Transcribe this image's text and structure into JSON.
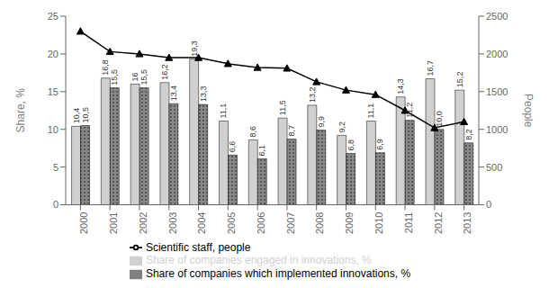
{
  "chart_data": {
    "type": "bar",
    "categories": [
      "2000",
      "2001",
      "2002",
      "2003",
      "2004",
      "2005",
      "2006",
      "2007",
      "2008",
      "2009",
      "2010",
      "2011",
      "2012",
      "2013"
    ],
    "series": [
      {
        "name": "Share of companies engaged in innovations, %",
        "type": "bar",
        "color": "#d0d0d0",
        "values": [
          10.4,
          16.8,
          16.0,
          16.2,
          19.3,
          11.1,
          8.6,
          11.5,
          13.2,
          9.2,
          11.1,
          14.3,
          16.7,
          15.2
        ],
        "value_labels": [
          "10,4",
          "16,8",
          "16",
          "16,2",
          "19,3",
          "11,1",
          "8,6",
          "11,5",
          "13,2",
          "9,2",
          "11,1",
          "14,3",
          "16,7",
          "15,2"
        ]
      },
      {
        "name": "Share of companies which implemented innovations, %",
        "type": "bar",
        "color": "#888888",
        "values": [
          10.5,
          15.5,
          15.5,
          13.4,
          13.3,
          6.6,
          6.1,
          8.7,
          9.9,
          6.8,
          6.9,
          11.2,
          10.0,
          8.2
        ],
        "value_labels": [
          "10,5",
          "15,5",
          "15,5",
          "13,4",
          "13,3",
          "6,6",
          "6,1",
          "8,7",
          "9,9",
          "6,8",
          "6,9",
          "11,2",
          "10,0",
          "8,2"
        ]
      },
      {
        "name": "Scientific staff, people",
        "type": "line",
        "color": "#000000",
        "marker": "triangle",
        "axis": "y2",
        "values": [
          2300,
          2030,
          2000,
          1950,
          1950,
          1870,
          1820,
          1810,
          1630,
          1520,
          1460,
          1250,
          1020,
          1100
        ]
      }
    ],
    "ylabel": "Share, %",
    "y2label": "People",
    "ylim": [
      0,
      25
    ],
    "yticks": [
      0,
      5,
      10,
      15,
      20,
      25
    ],
    "y2lim": [
      0,
      2500
    ],
    "y2ticks": [
      0,
      500,
      1000,
      1500,
      2000,
      2500
    ],
    "data_labels": true,
    "grid": false,
    "legend": "bottom"
  }
}
